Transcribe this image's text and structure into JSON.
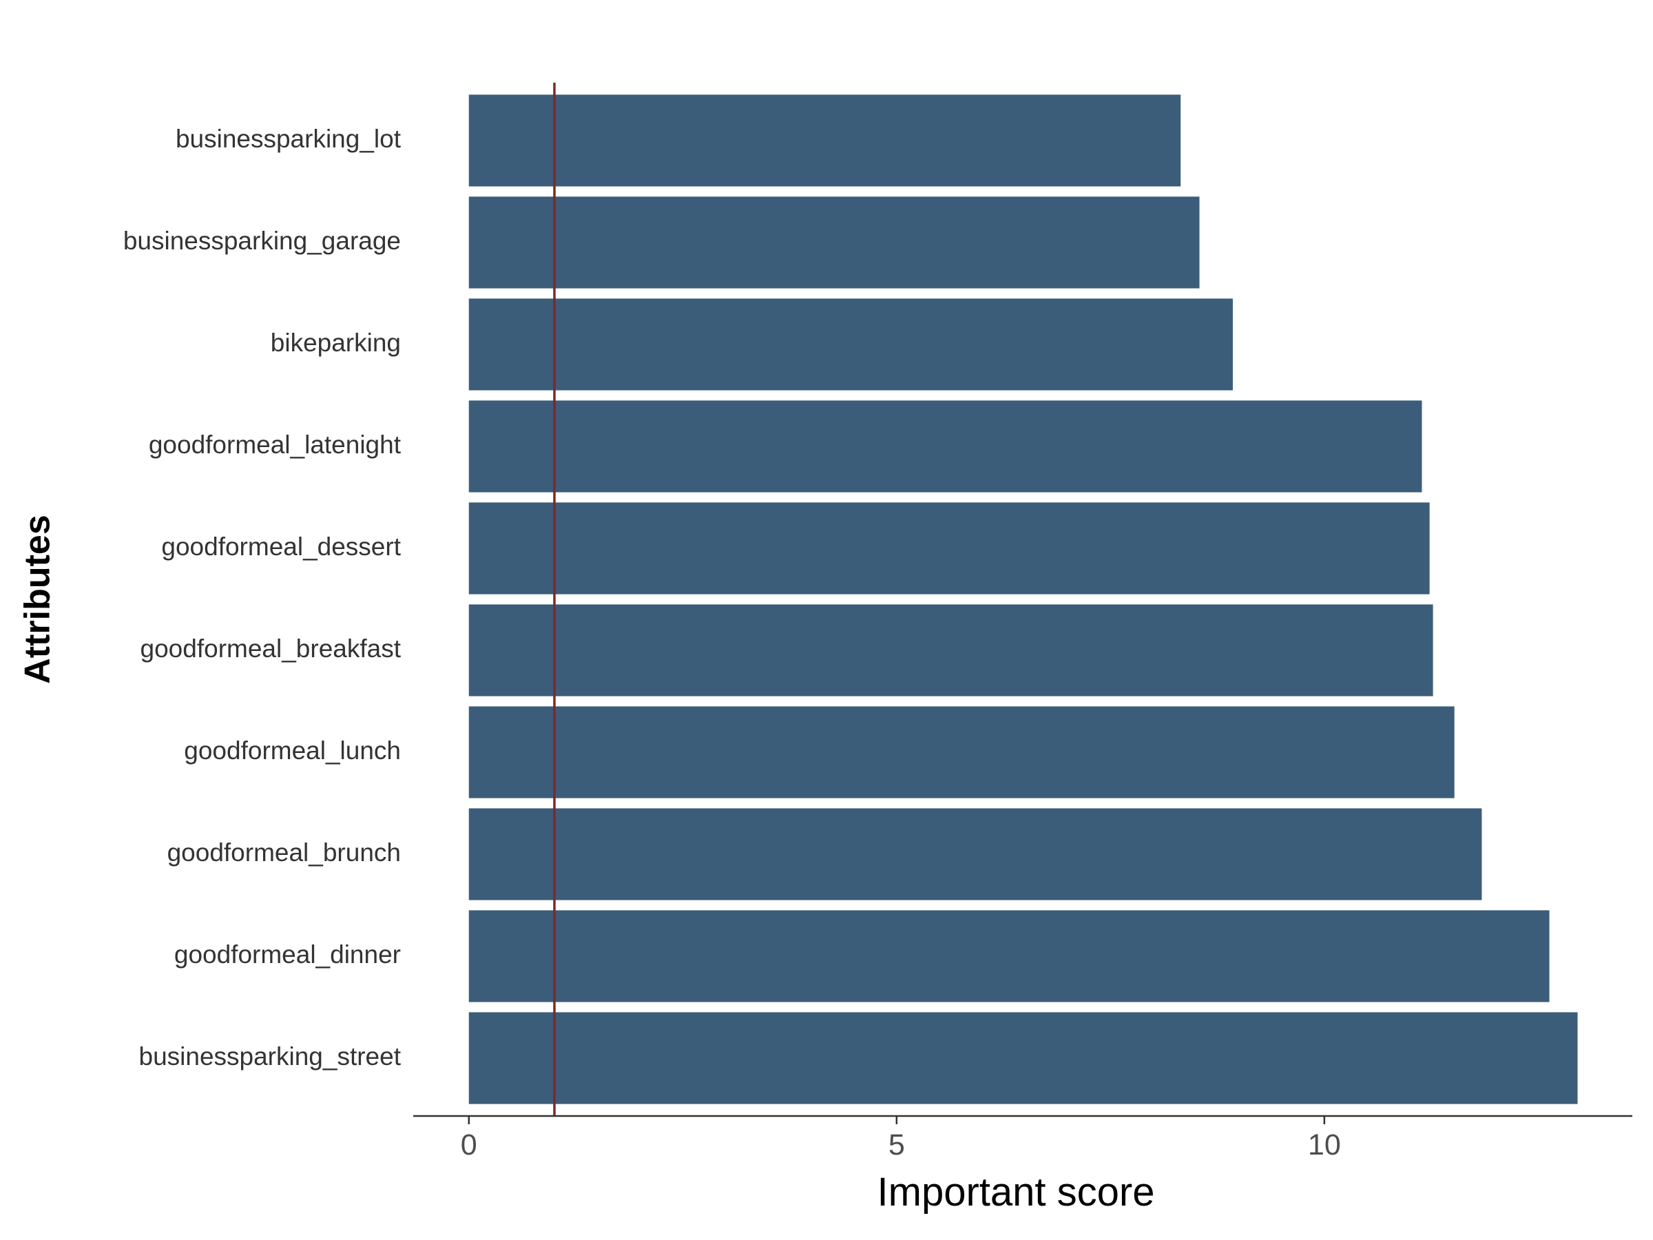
{
  "chart_data": {
    "type": "bar",
    "orientation": "horizontal",
    "title": "",
    "xlabel": "Important score",
    "ylabel": "Attributes",
    "categories": [
      "businessparking_lot",
      "businessparking_garage",
      "bikeparking",
      "goodformeal_latenight",
      "goodformeal_dessert",
      "goodformeal_breakfast",
      "goodformeal_lunch",
      "goodformeal_brunch",
      "goodformeal_dinner",
      "businessparking_street"
    ],
    "values": [
      8.32,
      8.54,
      8.93,
      11.14,
      11.23,
      11.27,
      11.52,
      11.84,
      12.63,
      12.96
    ],
    "xlim": [
      -0.65,
      13.6
    ],
    "xticks": [
      0,
      5,
      10
    ],
    "xtick_labels": [
      "0",
      "5",
      "10"
    ],
    "reference_line": {
      "x": 1.0,
      "color": "#7a2a2a"
    },
    "bar_color": "#3c5d79",
    "grid": false,
    "legend": "none"
  }
}
